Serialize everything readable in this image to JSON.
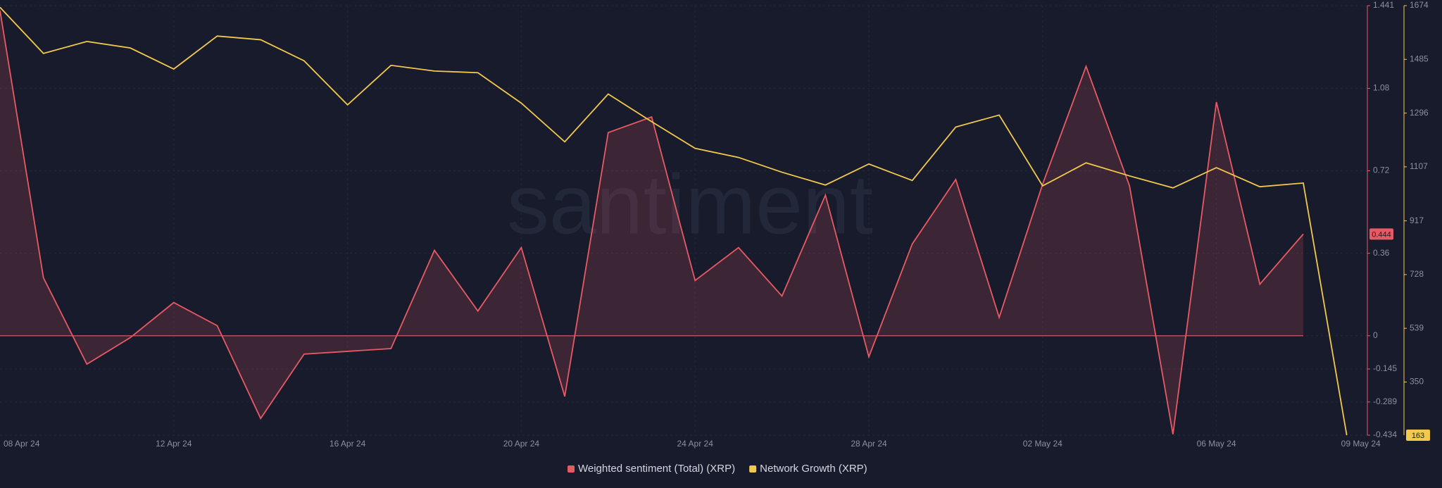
{
  "chart_data": {
    "type": "line",
    "watermark": "santiment",
    "categories": [
      "08 Apr 24",
      null,
      null,
      null,
      "12 Apr 24",
      null,
      null,
      null,
      "16 Apr 24",
      null,
      null,
      null,
      "20 Apr 24",
      null,
      null,
      null,
      "24 Apr 24",
      null,
      null,
      null,
      "28 Apr 24",
      null,
      null,
      null,
      "02 May 24",
      null,
      null,
      null,
      "06 May 24",
      null,
      null,
      "09 May 24"
    ],
    "series": [
      {
        "name": "Weighted sentiment (Total) (XRP)",
        "color": "#e85a63",
        "axis": "y",
        "values": [
          1.42,
          0.253,
          -0.124,
          -0.008,
          0.145,
          0.044,
          -0.361,
          -0.08,
          -0.068,
          -0.056,
          0.373,
          0.108,
          0.385,
          -0.265,
          0.887,
          0.955,
          0.241,
          0.385,
          0.173,
          0.614,
          -0.092,
          0.401,
          0.682,
          0.08,
          0.662,
          1.176,
          0.654,
          -0.43,
          1.02,
          0.225,
          0.444,
          null
        ]
      },
      {
        "name": "Network Growth (XRP)",
        "color": "#f2c94c",
        "axis": "y2",
        "values": [
          1668,
          1506,
          1548,
          1525,
          1451,
          1567,
          1554,
          1480,
          1325,
          1464,
          1444,
          1438,
          1331,
          1195,
          1363,
          1266,
          1172,
          1140,
          1088,
          1043,
          1117,
          1059,
          1247,
          1289,
          1040,
          1121,
          1075,
          1033,
          1104,
          1037,
          1050,
          163
        ]
      }
    ],
    "ylim": [
      -0.434,
      1.441
    ],
    "yticks": [
      1.441,
      1.08,
      0.72,
      0.36,
      0,
      -0.145,
      -0.289,
      -0.434
    ],
    "y2lim": [
      163,
      1674
    ],
    "y2ticks": [
      1674,
      1485,
      1296,
      1107,
      917,
      728,
      539,
      350
    ],
    "grid": true
  }
}
